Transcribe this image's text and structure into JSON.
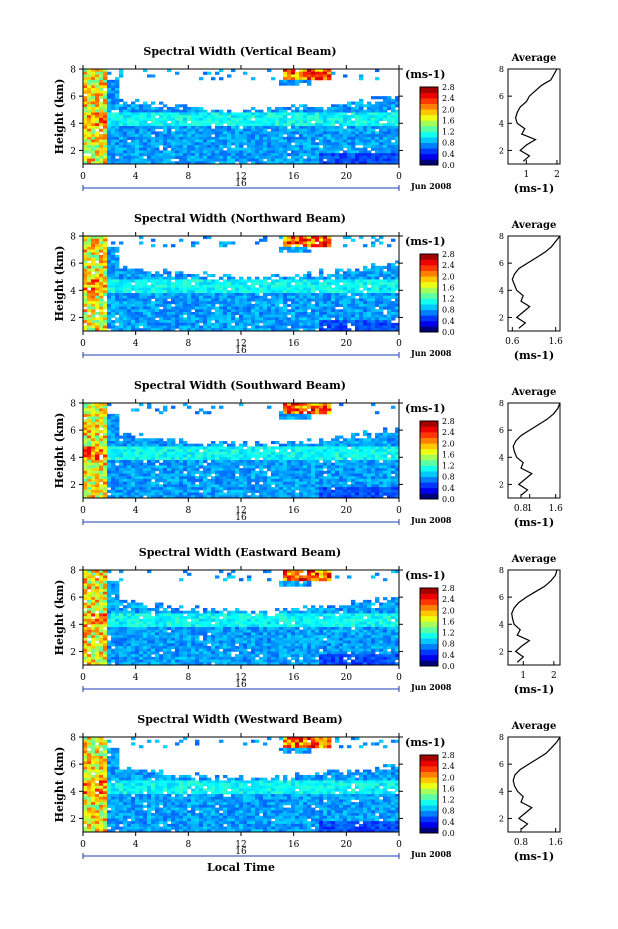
{
  "chart_data": [
    {
      "type": "heatmap",
      "title": "Spectral Width (Vertical Beam)",
      "ylabel": "Height (km)",
      "x_ticks": [
        "0",
        "4",
        "8",
        "12",
        "16",
        "20",
        "0"
      ],
      "day_label": "16",
      "month_label": "Jun 2008",
      "ylim": [
        1,
        8
      ],
      "y_ticks": [
        "2",
        "4",
        "6",
        "8"
      ],
      "colorbar": {
        "label": "(ms-1)",
        "ticks": [
          "0.0",
          "0.4",
          "0.8",
          "1.2",
          "1.6",
          "2.0",
          "2.4",
          "2.8"
        ]
      },
      "profile": {
        "title": "Average",
        "xlabel": "(ms-1)",
        "x_ticks": [
          "1",
          "2"
        ],
        "xlim": [
          0.4,
          2.1
        ],
        "y_ticks": [
          "2",
          "4",
          "6",
          "8"
        ],
        "heights": [
          1.2,
          1.6,
          2.0,
          2.4,
          2.8,
          3.2,
          3.6,
          4.0,
          4.4,
          4.8,
          5.2,
          5.6,
          6.0,
          6.4,
          6.8,
          7.2,
          7.6,
          8.0
        ],
        "values": [
          0.9,
          1.1,
          0.8,
          1.0,
          1.3,
          0.85,
          0.95,
          0.7,
          0.65,
          0.7,
          0.8,
          1.0,
          1.1,
          1.3,
          1.5,
          1.8,
          1.9,
          2.0
        ]
      }
    },
    {
      "type": "heatmap",
      "title": "Spectral Width (Northward Beam)",
      "ylabel": "Height (km)",
      "x_ticks": [
        "0",
        "4",
        "8",
        "12",
        "16",
        "20",
        "0"
      ],
      "day_label": "16",
      "month_label": "Jun 2008",
      "ylim": [
        1,
        8
      ],
      "y_ticks": [
        "2",
        "4",
        "6",
        "8"
      ],
      "colorbar": {
        "label": "(ms-1)",
        "ticks": [
          "0.0",
          "0.4",
          "0.8",
          "1.2",
          "1.6",
          "2.0",
          "2.4",
          "2.8"
        ]
      },
      "profile": {
        "title": "Average",
        "xlabel": "(ms-1)",
        "x_ticks": [
          "0.6",
          "1.6"
        ],
        "xlim": [
          0.5,
          1.7
        ],
        "y_ticks": [
          "2",
          "4",
          "6",
          "8"
        ],
        "heights": [
          1.2,
          1.6,
          2.0,
          2.4,
          2.8,
          3.2,
          3.6,
          4.0,
          4.4,
          4.8,
          5.2,
          5.6,
          6.0,
          6.4,
          6.8,
          7.2,
          7.6,
          8.0
        ],
        "values": [
          0.75,
          0.9,
          0.7,
          0.85,
          1.0,
          0.8,
          0.85,
          0.7,
          0.65,
          0.6,
          0.65,
          0.75,
          0.95,
          1.15,
          1.35,
          1.5,
          1.6,
          1.7
        ]
      }
    },
    {
      "type": "heatmap",
      "title": "Spectral Width (Southward Beam)",
      "ylabel": "Height (km)",
      "x_ticks": [
        "0",
        "4",
        "8",
        "12",
        "16",
        "20",
        "0"
      ],
      "day_label": "16",
      "month_label": "Jun 2008",
      "ylim": [
        1,
        8
      ],
      "y_ticks": [
        "2",
        "4",
        "6",
        "8"
      ],
      "colorbar": {
        "label": "(ms-1)",
        "ticks": [
          "0.0",
          "0.4",
          "0.8",
          "1.2",
          "1.6",
          "2.0",
          "2.4",
          "2.8"
        ]
      },
      "profile": {
        "title": "Average",
        "xlabel": "(ms-1)",
        "x_ticks": [
          "0.8",
          "1",
          "1.6"
        ],
        "xlim": [
          0.5,
          1.7
        ],
        "y_ticks": [
          "2",
          "4",
          "6",
          "8"
        ],
        "heights": [
          1.2,
          1.6,
          2.0,
          2.4,
          2.8,
          3.2,
          3.6,
          4.0,
          4.4,
          4.8,
          5.2,
          5.6,
          6.0,
          6.4,
          6.8,
          7.2,
          7.6,
          8.0
        ],
        "values": [
          0.8,
          0.95,
          0.75,
          0.9,
          1.05,
          0.8,
          0.85,
          0.7,
          0.65,
          0.62,
          0.68,
          0.8,
          1.0,
          1.2,
          1.4,
          1.55,
          1.65,
          1.7
        ]
      }
    },
    {
      "type": "heatmap",
      "title": "Spectral Width (Eastward Beam)",
      "ylabel": "Height (km)",
      "x_ticks": [
        "0",
        "4",
        "8",
        "12",
        "16",
        "20",
        "0"
      ],
      "day_label": "16",
      "month_label": "Jun 2008",
      "ylim": [
        1,
        8
      ],
      "y_ticks": [
        "2",
        "4",
        "6",
        "8"
      ],
      "colorbar": {
        "label": "(ms-1)",
        "ticks": [
          "0.0",
          "0.4",
          "0.8",
          "1.2",
          "1.6",
          "2.0",
          "2.4",
          "2.8"
        ]
      },
      "profile": {
        "title": "Average",
        "xlabel": "(ms-1)",
        "x_ticks": [
          "1",
          "2"
        ],
        "xlim": [
          0.5,
          2.2
        ],
        "y_ticks": [
          "2",
          "4",
          "6",
          "8"
        ],
        "heights": [
          1.2,
          1.6,
          2.0,
          2.4,
          2.8,
          3.2,
          3.6,
          4.0,
          4.4,
          4.8,
          5.2,
          5.6,
          6.0,
          6.4,
          6.8,
          7.2,
          7.6,
          8.0
        ],
        "values": [
          0.8,
          1.0,
          0.75,
          0.95,
          1.2,
          0.8,
          0.9,
          0.7,
          0.65,
          0.62,
          0.7,
          0.85,
          1.1,
          1.4,
          1.7,
          1.9,
          2.05,
          2.1
        ]
      }
    },
    {
      "type": "heatmap",
      "title": "Spectral Width (Westward Beam)",
      "ylabel": "Height (km)",
      "x_ticks": [
        "0",
        "4",
        "8",
        "12",
        "16",
        "20",
        "0"
      ],
      "day_label": "16",
      "month_label": "Jun 2008",
      "ylim": [
        1,
        8
      ],
      "y_ticks": [
        "2",
        "4",
        "6",
        "8"
      ],
      "colorbar": {
        "label": "(ms-1)",
        "ticks": [
          "0.0",
          "0.4",
          "0.8",
          "1.2",
          "1.6",
          "2.0",
          "2.4",
          "2.8"
        ]
      },
      "xlabel": "Local Time",
      "profile": {
        "title": "Average",
        "xlabel": "(ms-1)",
        "x_ticks": [
          "0.8",
          "1.6"
        ],
        "xlim": [
          0.5,
          1.7
        ],
        "y_ticks": [
          "2",
          "4",
          "6",
          "8"
        ],
        "heights": [
          1.2,
          1.6,
          2.0,
          2.4,
          2.8,
          3.2,
          3.6,
          4.0,
          4.4,
          4.8,
          5.2,
          5.6,
          6.0,
          6.4,
          6.8,
          7.2,
          7.6,
          8.0
        ],
        "values": [
          0.8,
          0.95,
          0.75,
          0.9,
          1.05,
          0.8,
          0.85,
          0.72,
          0.65,
          0.62,
          0.66,
          0.78,
          0.98,
          1.18,
          1.38,
          1.5,
          1.62,
          1.7
        ]
      }
    }
  ]
}
